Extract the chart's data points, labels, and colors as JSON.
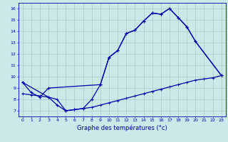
{
  "xlabel": "Graphe des températures (°c)",
  "bg_color": "#cce8e8",
  "line_color": "#0000aa",
  "grid_color": "#aacccc",
  "xmin": -0.5,
  "xmax": 23.5,
  "ymin": 6.5,
  "ymax": 16.5,
  "yticks": [
    7,
    8,
    9,
    10,
    11,
    12,
    13,
    14,
    15,
    16
  ],
  "xticks": [
    0,
    1,
    2,
    3,
    4,
    5,
    6,
    7,
    8,
    9,
    10,
    11,
    12,
    13,
    14,
    15,
    16,
    17,
    18,
    19,
    20,
    21,
    22,
    23
  ],
  "line1_x": [
    0,
    1,
    2,
    3,
    9,
    10,
    11,
    12,
    13,
    14,
    15,
    16,
    17,
    18,
    19,
    20,
    23
  ],
  "line1_y": [
    9.5,
    8.6,
    8.2,
    9.0,
    9.3,
    11.7,
    12.3,
    13.8,
    14.1,
    14.9,
    15.6,
    15.5,
    16.0,
    15.2,
    14.4,
    13.1,
    10.1
  ],
  "line2_x": [
    0,
    3,
    4,
    5,
    6,
    7,
    8,
    9,
    10,
    11,
    12,
    13,
    14,
    15,
    16,
    17,
    18,
    19,
    20,
    23
  ],
  "line2_y": [
    9.5,
    8.2,
    7.5,
    7.0,
    7.1,
    7.2,
    8.0,
    9.3,
    11.7,
    12.3,
    13.8,
    14.1,
    14.9,
    15.6,
    15.5,
    16.0,
    15.2,
    14.4,
    13.1,
    10.1
  ],
  "line3_x": [
    0,
    1,
    2,
    3,
    4,
    5,
    6,
    7,
    8,
    9,
    10,
    11,
    12,
    13,
    14,
    15,
    16,
    17,
    18,
    19,
    20,
    21,
    22,
    23
  ],
  "line3_y": [
    8.5,
    8.4,
    8.3,
    8.2,
    8.0,
    7.0,
    7.1,
    7.2,
    7.3,
    7.5,
    7.7,
    7.9,
    8.1,
    8.3,
    8.5,
    8.7,
    8.9,
    9.1,
    9.3,
    9.5,
    9.7,
    9.8,
    9.9,
    10.1
  ],
  "lw": 0.9,
  "ms": 3.5,
  "xlabel_fontsize": 6,
  "tick_fontsize": 4.5
}
